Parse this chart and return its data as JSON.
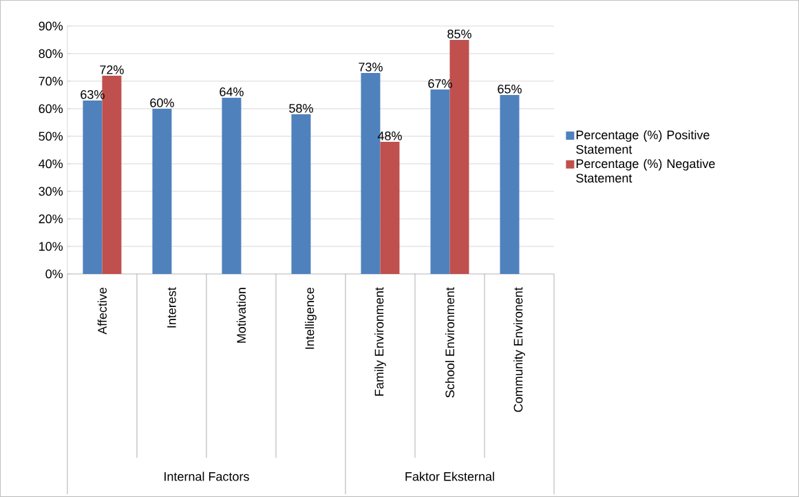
{
  "chart_data": {
    "type": "bar",
    "categories": [
      "Affective",
      "Interest",
      "Motivation",
      "Intelligence",
      "Family Environment",
      "School Environment",
      "Community Environent"
    ],
    "series": [
      {
        "name": "Percentage (%) Positive Statement",
        "color": "#4f81bd",
        "values": [
          63,
          60,
          64,
          58,
          73,
          67,
          65
        ],
        "value_labels": [
          "63%",
          "60%",
          "64%",
          "58%",
          "73%",
          "67%",
          "65%"
        ]
      },
      {
        "name": "Percentage (%) Negative Statement",
        "color": "#c0504d",
        "values": [
          72,
          null,
          null,
          null,
          48,
          85,
          null
        ],
        "value_labels": [
          "72%",
          null,
          null,
          null,
          "48%",
          "85%",
          null
        ]
      }
    ],
    "ylim": [
      0,
      90
    ],
    "yticks": [
      {
        "value": 0,
        "label": "0%"
      },
      {
        "value": 10,
        "label": "10%"
      },
      {
        "value": 20,
        "label": "20%"
      },
      {
        "value": 30,
        "label": "30%"
      },
      {
        "value": 40,
        "label": "40%"
      },
      {
        "value": 50,
        "label": "50%"
      },
      {
        "value": 60,
        "label": "60%"
      },
      {
        "value": 70,
        "label": "70%"
      },
      {
        "value": 80,
        "label": "80%"
      },
      {
        "value": 90,
        "label": "90%"
      }
    ],
    "annotations": [
      "Internal Factors",
      "Faktor Eksternal"
    ],
    "grid": "y",
    "legend": "right"
  }
}
